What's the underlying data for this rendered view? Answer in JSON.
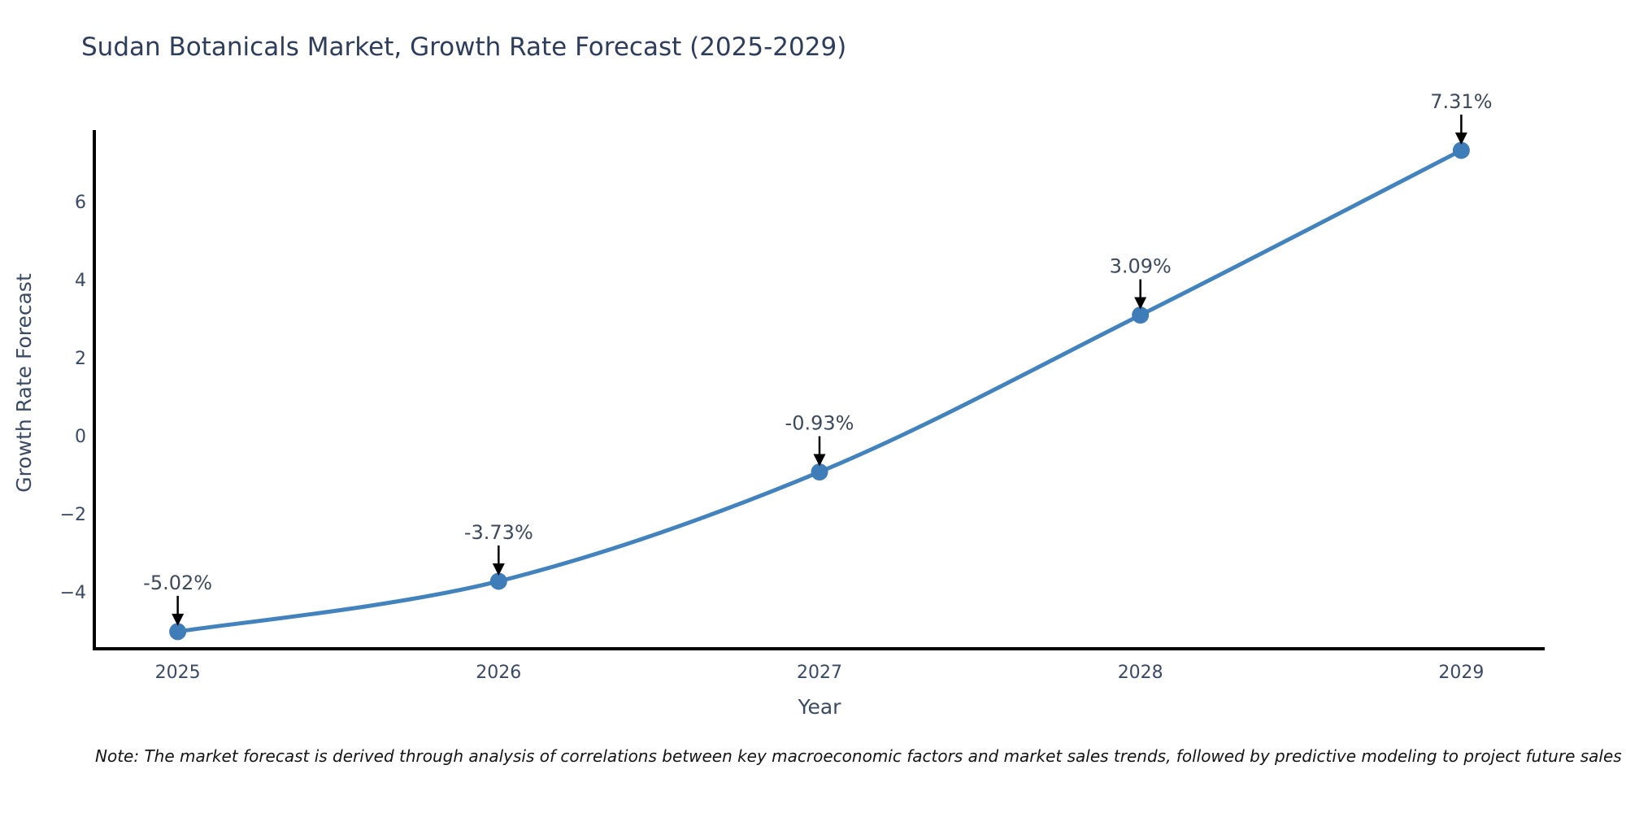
{
  "title": "Sudan Botanicals Market, Growth Rate Forecast (2025-2029)",
  "note": "Note: The market forecast is derived through analysis of correlations between key macroeconomic factors and market sales trends, followed by predictive modeling to project future sales",
  "chart_data": {
    "type": "line",
    "title": "Sudan Botanicals Market, Growth Rate Forecast (2025-2029)",
    "x": [
      2025,
      2026,
      2027,
      2028,
      2029
    ],
    "series": [
      {
        "name": "Growth Rate Forecast",
        "values": [
          -5.02,
          -3.73,
          -0.93,
          3.09,
          7.31
        ]
      }
    ],
    "point_labels": [
      "-5.02%",
      "-3.73%",
      "-0.93%",
      "3.09%",
      "7.31%"
    ],
    "xlabel": "Year",
    "ylabel": "Growth Rate Forecast",
    "xticks": [
      "2025",
      "2026",
      "2027",
      "2028",
      "2029"
    ],
    "yticks": [
      6,
      4,
      2,
      0,
      -2,
      -4
    ],
    "xlim": [
      2024.74,
      2029.26
    ],
    "ylim": [
      -5.46,
      7.83
    ],
    "grid": false,
    "legend": false,
    "smooth": true,
    "line_color": "#4282bd",
    "marker_color": "#3e7db8",
    "axis_color": "#000000",
    "arrow_color": "#000000",
    "text_color": "#3b4a63",
    "annotation_color": "#3d4a5c"
  }
}
